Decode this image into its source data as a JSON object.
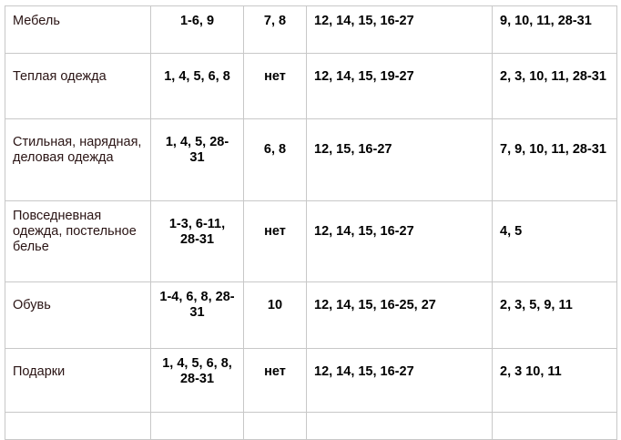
{
  "rows": [
    {
      "item": "Мебель",
      "c1": "1-6, 9",
      "c2": "7, 8",
      "c3": "12, 14, 15, 16-27",
      "c4": "9, 10, 11, 28-31"
    },
    {
      "item": "Теплая одежда",
      "c1": "1, 4, 5, 6, 8",
      "c2": "нет",
      "c3": "12, 14, 15, 19-27",
      "c4": "2, 3, 10, 11, 28-31"
    },
    {
      "item": "Стильная, нарядная, деловая одежда",
      "c1": "1, 4, 5, 28-31",
      "c2": "6, 8",
      "c3": "12, 15, 16-27",
      "c4": "7, 9, 10, 11, 28-31"
    },
    {
      "item": "Повседневная одежда, постельное белье",
      "c1": "1-3, 6-11, 28-31",
      "c2": "нет",
      "c3": "12, 14, 15, 16-27",
      "c4": "4, 5"
    },
    {
      "item": "Обувь",
      "c1": "1-4, 6, 8, 28-31",
      "c2": "10",
      "c3": "12, 14, 15, 16-25, 27",
      "c4": "2, 3, 5, 9, 11"
    },
    {
      "item": "Подарки",
      "c1": "1, 4, 5, 6, 8, 28-31",
      "c2": "нет",
      "c3": "12, 14, 15, 16-27",
      "c4": "2, 3 10, 11"
    }
  ]
}
